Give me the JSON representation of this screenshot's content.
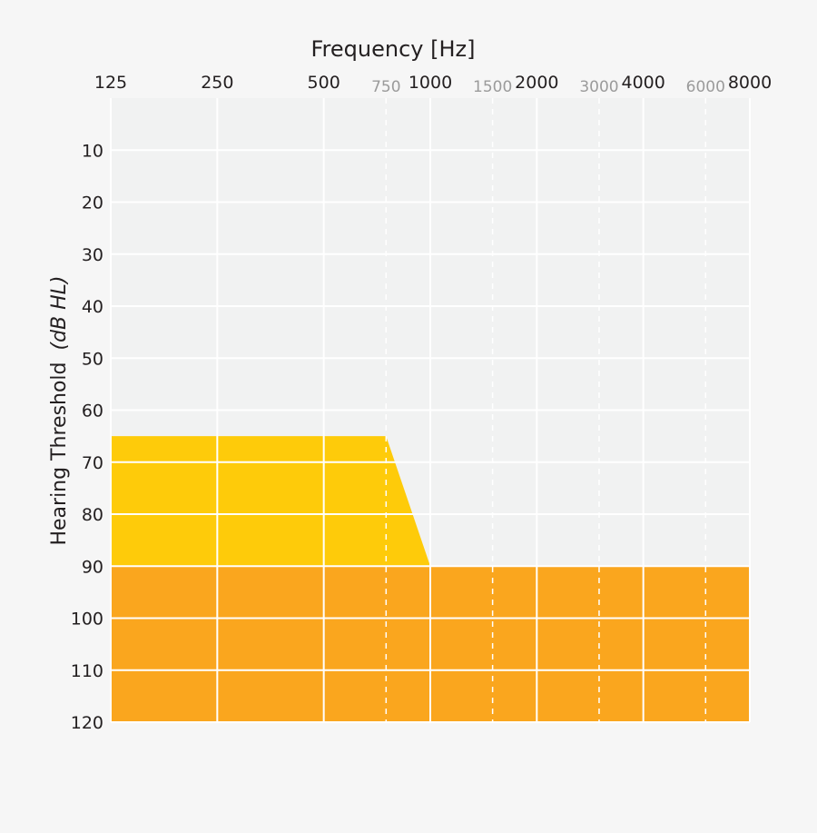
{
  "chart_data": {
    "type": "area",
    "title": "",
    "xlabel": "Frequency [Hz]",
    "ylabel_main": "Hearing Threshold",
    "ylabel_unit": "(dB HL)",
    "x_scale": "log",
    "x_major_ticks": [
      "125",
      "250",
      "500",
      "1000",
      "2000",
      "4000",
      "8000"
    ],
    "x_minor_ticks": [
      "750",
      "1500",
      "3000",
      "6000"
    ],
    "y_ticks": [
      "10",
      "20",
      "30",
      "40",
      "50",
      "60",
      "70",
      "80",
      "90",
      "100",
      "110",
      "120"
    ],
    "xlim": [
      125,
      8000
    ],
    "ylim": [
      0,
      120
    ],
    "y_inverted": true,
    "grid": true,
    "regions": [
      {
        "points": [
          [
            125,
            65
          ],
          [
            750,
            65
          ],
          [
            1000,
            90
          ],
          [
            125,
            90
          ]
        ],
        "color": "#fecb0a"
      },
      {
        "points": [
          [
            125,
            90
          ],
          [
            8000,
            90
          ],
          [
            8000,
            120
          ],
          [
            125,
            120
          ]
        ],
        "color": "#faa61e"
      }
    ]
  },
  "colors": {
    "plot_background": "#f1f2f2",
    "page_background": "#f6f6f6",
    "major_tick_text": "#231f20",
    "minor_tick_text": "#9b9b9b",
    "grid_line": "#ffffff"
  }
}
